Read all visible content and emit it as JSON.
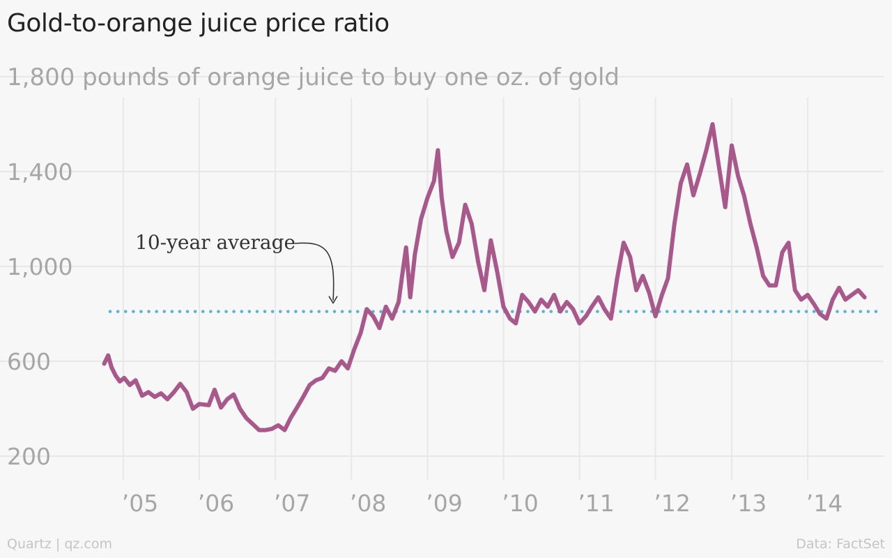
{
  "title": "Gold-to-orange juice price ratio",
  "footer": {
    "source_left": "Quartz | qz.com",
    "source_right": "Data: FactSet"
  },
  "colors": {
    "series": "#a8588a",
    "average": "#59b4d9",
    "grid": "#e8e8e8",
    "background": "#f7f7f7"
  },
  "chart_data": {
    "type": "line",
    "title": "Gold-to-orange juice price ratio",
    "subtitle": "1,800 pounds of orange juice to buy one oz. of gold",
    "xlabel": "",
    "ylabel": "",
    "xlim": [
      "2004-08-01",
      "2014-12-31"
    ],
    "ylim": [
      120,
      1800
    ],
    "grid": true,
    "legend": "none",
    "x_ticks": [
      {
        "date": "2005-01-01",
        "label": "’05"
      },
      {
        "date": "2006-01-01",
        "label": "’06"
      },
      {
        "date": "2007-01-01",
        "label": "’07"
      },
      {
        "date": "2008-01-01",
        "label": "’08"
      },
      {
        "date": "2009-01-01",
        "label": "’09"
      },
      {
        "date": "2010-01-01",
        "label": "’10"
      },
      {
        "date": "2011-01-01",
        "label": "’11"
      },
      {
        "date": "2012-01-01",
        "label": "’12"
      },
      {
        "date": "2013-01-01",
        "label": "’13"
      },
      {
        "date": "2014-01-01",
        "label": "’14"
      }
    ],
    "y_ticks": [
      {
        "value": 200,
        "label": "200"
      },
      {
        "value": 600,
        "label": "600"
      },
      {
        "value": 1000,
        "label": "1,000"
      },
      {
        "value": 1400,
        "label": "1,400"
      }
    ],
    "average": {
      "value": 810,
      "label": "10-year average"
    },
    "series": [
      {
        "points": [
          [
            "2004-10-01",
            590
          ],
          [
            "2004-10-20",
            625
          ],
          [
            "2004-11-05",
            575
          ],
          [
            "2004-11-25",
            540
          ],
          [
            "2004-12-15",
            515
          ],
          [
            "2005-01-05",
            530
          ],
          [
            "2005-02-01",
            500
          ],
          [
            "2005-03-01",
            520
          ],
          [
            "2005-04-01",
            455
          ],
          [
            "2005-05-01",
            470
          ],
          [
            "2005-06-01",
            450
          ],
          [
            "2005-07-01",
            465
          ],
          [
            "2005-08-01",
            440
          ],
          [
            "2005-09-01",
            470
          ],
          [
            "2005-10-01",
            505
          ],
          [
            "2005-11-01",
            470
          ],
          [
            "2005-12-01",
            400
          ],
          [
            "2006-01-01",
            420
          ],
          [
            "2006-02-15",
            415
          ],
          [
            "2006-03-15",
            480
          ],
          [
            "2006-04-15",
            405
          ],
          [
            "2006-05-15",
            440
          ],
          [
            "2006-06-15",
            460
          ],
          [
            "2006-07-15",
            400
          ],
          [
            "2006-08-15",
            360
          ],
          [
            "2006-09-15",
            335
          ],
          [
            "2006-10-15",
            310
          ],
          [
            "2006-11-15",
            310
          ],
          [
            "2006-12-15",
            315
          ],
          [
            "2007-01-15",
            330
          ],
          [
            "2007-02-15",
            310
          ],
          [
            "2007-03-15",
            360
          ],
          [
            "2007-04-15",
            405
          ],
          [
            "2007-05-15",
            450
          ],
          [
            "2007-06-15",
            500
          ],
          [
            "2007-07-15",
            520
          ],
          [
            "2007-08-15",
            530
          ],
          [
            "2007-09-15",
            570
          ],
          [
            "2007-10-15",
            560
          ],
          [
            "2007-11-15",
            600
          ],
          [
            "2007-12-15",
            570
          ],
          [
            "2008-01-15",
            650
          ],
          [
            "2008-02-15",
            720
          ],
          [
            "2008-03-15",
            820
          ],
          [
            "2008-04-15",
            790
          ],
          [
            "2008-05-15",
            740
          ],
          [
            "2008-06-15",
            830
          ],
          [
            "2008-07-15",
            780
          ],
          [
            "2008-08-15",
            850
          ],
          [
            "2008-09-01",
            960
          ],
          [
            "2008-09-20",
            1080
          ],
          [
            "2008-10-10",
            870
          ],
          [
            "2008-11-01",
            1050
          ],
          [
            "2008-12-01",
            1200
          ],
          [
            "2009-01-01",
            1290
          ],
          [
            "2009-02-01",
            1360
          ],
          [
            "2009-02-20",
            1490
          ],
          [
            "2009-03-10",
            1290
          ],
          [
            "2009-04-01",
            1150
          ],
          [
            "2009-05-01",
            1040
          ],
          [
            "2009-06-01",
            1100
          ],
          [
            "2009-07-01",
            1260
          ],
          [
            "2009-08-01",
            1180
          ],
          [
            "2009-09-01",
            1020
          ],
          [
            "2009-10-01",
            900
          ],
          [
            "2009-11-01",
            1110
          ],
          [
            "2009-12-01",
            980
          ],
          [
            "2010-01-01",
            830
          ],
          [
            "2010-02-01",
            780
          ],
          [
            "2010-03-01",
            760
          ],
          [
            "2010-04-01",
            880
          ],
          [
            "2010-05-01",
            850
          ],
          [
            "2010-06-01",
            810
          ],
          [
            "2010-07-01",
            860
          ],
          [
            "2010-08-01",
            830
          ],
          [
            "2010-09-01",
            880
          ],
          [
            "2010-10-01",
            810
          ],
          [
            "2010-11-01",
            850
          ],
          [
            "2010-12-01",
            820
          ],
          [
            "2011-01-01",
            760
          ],
          [
            "2011-02-01",
            790
          ],
          [
            "2011-03-01",
            830
          ],
          [
            "2011-04-01",
            870
          ],
          [
            "2011-05-01",
            820
          ],
          [
            "2011-06-01",
            780
          ],
          [
            "2011-07-01",
            950
          ],
          [
            "2011-08-01",
            1100
          ],
          [
            "2011-09-01",
            1040
          ],
          [
            "2011-10-01",
            900
          ],
          [
            "2011-11-01",
            960
          ],
          [
            "2011-12-01",
            890
          ],
          [
            "2012-01-01",
            790
          ],
          [
            "2012-02-01",
            880
          ],
          [
            "2012-03-01",
            950
          ],
          [
            "2012-04-01",
            1180
          ],
          [
            "2012-05-01",
            1350
          ],
          [
            "2012-06-01",
            1430
          ],
          [
            "2012-07-01",
            1300
          ],
          [
            "2012-08-01",
            1390
          ],
          [
            "2012-09-01",
            1490
          ],
          [
            "2012-10-01",
            1600
          ],
          [
            "2012-11-01",
            1420
          ],
          [
            "2012-12-01",
            1250
          ],
          [
            "2013-01-01",
            1510
          ],
          [
            "2013-02-01",
            1380
          ],
          [
            "2013-03-01",
            1300
          ],
          [
            "2013-04-01",
            1180
          ],
          [
            "2013-05-01",
            1080
          ],
          [
            "2013-06-01",
            960
          ],
          [
            "2013-07-01",
            920
          ],
          [
            "2013-08-01",
            920
          ],
          [
            "2013-09-01",
            1060
          ],
          [
            "2013-10-01",
            1100
          ],
          [
            "2013-11-01",
            900
          ],
          [
            "2013-12-01",
            860
          ],
          [
            "2014-01-01",
            880
          ],
          [
            "2014-02-01",
            840
          ],
          [
            "2014-03-01",
            800
          ],
          [
            "2014-04-01",
            780
          ],
          [
            "2014-05-01",
            860
          ],
          [
            "2014-06-01",
            910
          ],
          [
            "2014-07-01",
            860
          ],
          [
            "2014-08-01",
            880
          ],
          [
            "2014-09-01",
            900
          ],
          [
            "2014-10-01",
            870
          ]
        ]
      }
    ]
  }
}
